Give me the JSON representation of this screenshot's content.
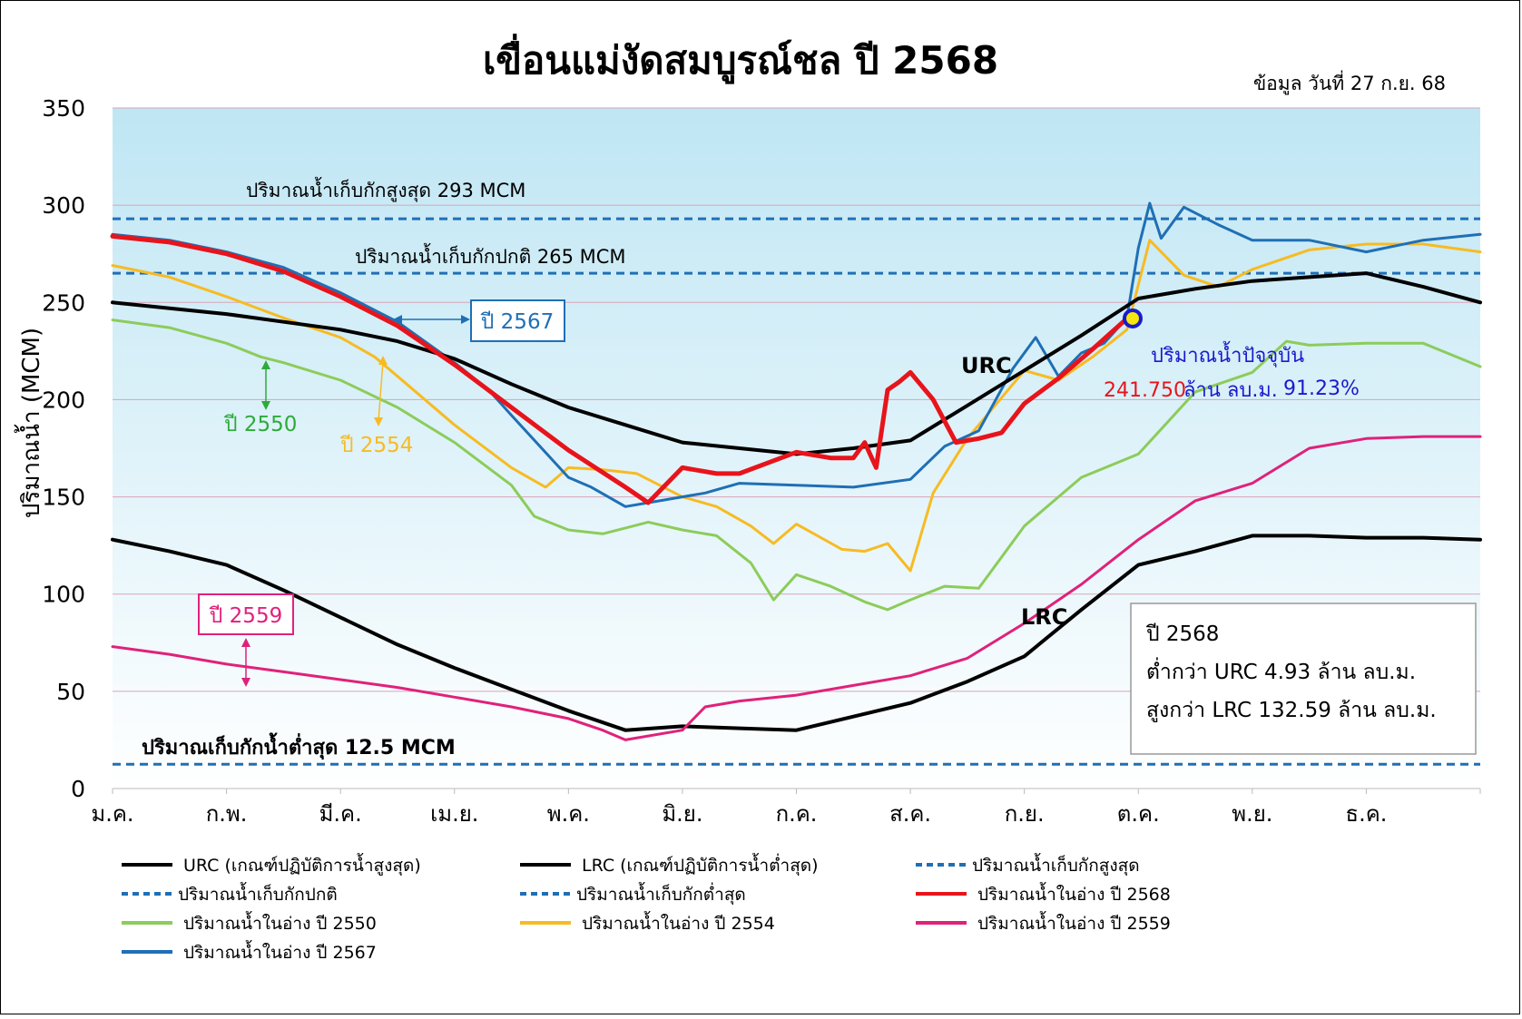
{
  "chart_data": {
    "type": "line",
    "title": "เขื่อนแม่งัดสมบูรณ์ชล ปี 2568",
    "subtitle": "ข้อมูล วันที่ 27 ก.ย. 68",
    "ylabel": "ปริมาณน้ำ (MCM)",
    "ylim": [
      0,
      350
    ],
    "yticks": [
      "0",
      "50",
      "100",
      "150",
      "200",
      "250",
      "300",
      "350"
    ],
    "xlim": [
      1,
      13
    ],
    "x_tick_labels": [
      "ม.ค.",
      "ก.พ.",
      "มี.ค.",
      "เม.ย.",
      "พ.ค.",
      "มิ.ย.",
      "ก.ค.",
      "ส.ค.",
      "ก.ย.",
      "ต.ค.",
      "พ.ย.",
      "ธ.ค."
    ],
    "colors": {
      "background_top": "#bfe6f4",
      "background_bottom": "#ffffff",
      "grid": "#d9a5b9",
      "urc": "#000000",
      "lrc": "#000000",
      "ref": "#1f6fb5",
      "y2568": "#e8141b",
      "y2550": "#8ccc5a",
      "y2554": "#f7bb22",
      "y2559": "#e0217b",
      "y2567": "#1f6fb5",
      "marker_fill": "#f5e60f",
      "marker_stroke": "#1a1acd"
    },
    "reference_lines": [
      {
        "key": "max",
        "value": 293,
        "label": "ปริมาณน้ำเก็บกักสูงสุด 293 MCM"
      },
      {
        "key": "normal",
        "value": 265,
        "label": "ปริมาณน้ำเก็บกักปกติ 265 MCM"
      },
      {
        "key": "min",
        "value": 12.5,
        "label": "ปริมาณเก็บกักน้ำต่ำสุด 12.5 MCM"
      }
    ],
    "series": [
      {
        "key": "urc",
        "x": [
          1.0,
          1.5,
          2.0,
          2.5,
          3.0,
          3.5,
          4.0,
          4.5,
          5.0,
          5.5,
          6.0,
          6.5,
          7.0,
          7.5,
          8.0,
          8.5,
          9.0,
          9.5,
          10.0,
          10.5,
          11.0,
          11.5,
          12.0,
          12.5,
          13.0
        ],
        "values": [
          250,
          247,
          244,
          240,
          236,
          230,
          221,
          208,
          196,
          187,
          178,
          175,
          172,
          175,
          179,
          197,
          215,
          233,
          252,
          257,
          261,
          263,
          265,
          258,
          250
        ]
      },
      {
        "key": "lrc",
        "x": [
          1.0,
          1.5,
          2.0,
          2.5,
          3.0,
          3.5,
          4.0,
          4.5,
          5.0,
          5.5,
          6.0,
          6.5,
          7.0,
          7.5,
          8.0,
          8.5,
          9.0,
          9.5,
          10.0,
          10.5,
          11.0,
          11.5,
          12.0,
          12.5,
          13.0
        ],
        "values": [
          128,
          122,
          115,
          102,
          88,
          74,
          62,
          51,
          40,
          30,
          32,
          31,
          30,
          37,
          44,
          55,
          68,
          92,
          115,
          122,
          130,
          130,
          129,
          129,
          128
        ]
      },
      {
        "key": "y2568",
        "x": [
          1.0,
          1.5,
          2.0,
          2.5,
          3.0,
          3.5,
          4.0,
          4.5,
          5.0,
          5.5,
          5.7,
          6.0,
          6.3,
          6.5,
          7.0,
          7.3,
          7.5,
          7.6,
          7.7,
          7.8,
          7.9,
          8.0,
          8.2,
          8.4,
          8.6,
          8.8,
          9.0,
          9.3,
          9.6,
          9.9
        ],
        "values": [
          284,
          281,
          275,
          266,
          253,
          238,
          218,
          196,
          174,
          155,
          147,
          165,
          162,
          162,
          173,
          170,
          170,
          178,
          165,
          205,
          209,
          214,
          200,
          178,
          180,
          183,
          198,
          211,
          226,
          241.75
        ]
      },
      {
        "key": "y2550",
        "x": [
          1.0,
          1.5,
          2.0,
          2.3,
          2.5,
          3.0,
          3.5,
          4.0,
          4.5,
          4.7,
          5.0,
          5.3,
          5.5,
          5.7,
          6.0,
          6.3,
          6.6,
          6.8,
          7.0,
          7.3,
          7.6,
          7.8,
          8.0,
          8.3,
          8.6,
          9.0,
          9.5,
          10.0,
          10.5,
          11.0,
          11.3,
          11.5,
          12.0,
          12.5,
          13.0
        ],
        "values": [
          241,
          237,
          229,
          222,
          219,
          210,
          196,
          178,
          156,
          140,
          133,
          131,
          134,
          137,
          133,
          130,
          116,
          97,
          110,
          104,
          96,
          92,
          97,
          104,
          103,
          135,
          160,
          172,
          204,
          214,
          230,
          228,
          229,
          229,
          217
        ]
      },
      {
        "key": "y2554",
        "x": [
          1.0,
          1.5,
          2.0,
          2.5,
          3.0,
          3.3,
          3.5,
          4.0,
          4.5,
          4.8,
          5.0,
          5.3,
          5.6,
          6.0,
          6.3,
          6.6,
          6.8,
          7.0,
          7.4,
          7.6,
          7.8,
          8.0,
          8.2,
          8.5,
          9.0,
          9.3,
          9.6,
          9.9,
          10.1,
          10.4,
          10.7,
          11.0,
          11.5,
          12.0,
          12.5,
          13.0
        ],
        "values": [
          269,
          263,
          253,
          242,
          232,
          222,
          212,
          187,
          165,
          155,
          165,
          164,
          162,
          150,
          145,
          135,
          126,
          136,
          123,
          122,
          126,
          112,
          152,
          180,
          215,
          210,
          222,
          236,
          282,
          264,
          258,
          267,
          277,
          280,
          280,
          276
        ]
      },
      {
        "key": "y2559",
        "x": [
          1.0,
          1.5,
          2.0,
          2.5,
          3.0,
          3.5,
          4.0,
          4.5,
          5.0,
          5.3,
          5.5,
          6.0,
          6.2,
          6.5,
          7.0,
          7.5,
          8.0,
          8.5,
          9.0,
          9.5,
          10.0,
          10.5,
          11.0,
          11.5,
          12.0,
          12.5,
          13.0
        ],
        "values": [
          73,
          69,
          64,
          60,
          56,
          52,
          47,
          42,
          36,
          30,
          25,
          30,
          42,
          45,
          48,
          53,
          58,
          67,
          85,
          105,
          128,
          148,
          157,
          175,
          180,
          181,
          181
        ]
      },
      {
        "key": "y2567",
        "x": [
          1.0,
          1.5,
          2.0,
          2.5,
          3.0,
          3.5,
          4.0,
          4.3,
          4.5,
          5.0,
          5.2,
          5.5,
          5.8,
          6.2,
          6.5,
          7.0,
          7.5,
          8.0,
          8.3,
          8.6,
          8.9,
          9.1,
          9.3,
          9.5,
          9.7,
          9.9,
          10.0,
          10.1,
          10.2,
          10.4,
          10.7,
          11.0,
          11.5,
          12.0,
          12.5,
          13.0
        ],
        "values": [
          285,
          282,
          276,
          268,
          255,
          240,
          219,
          205,
          192,
          160,
          155,
          145,
          148,
          152,
          157,
          156,
          155,
          159,
          176,
          184,
          216,
          232,
          212,
          224,
          229,
          242,
          278,
          301,
          283,
          299,
          290,
          282,
          282,
          276,
          282,
          285
        ]
      }
    ],
    "series_labels": [
      {
        "text": "URC"
      },
      {
        "text": "LRC"
      },
      {
        "text": "ปี 2567"
      },
      {
        "text": "ปี 2550"
      },
      {
        "text": "ปี 2554"
      },
      {
        "text": "ปี 2559"
      }
    ],
    "current": {
      "x": 9.95,
      "value": 241.75,
      "caption": "ปริมาณน้ำปัจจุบัน",
      "value_text": "241.750",
      "unit_text": "ล้าน ลบ.ม.",
      "percent_text": "91.23%"
    },
    "info_box": {
      "lines": [
        "ปี 2568",
        "ต่ำกว่า URC 4.93 ล้าน ลบ.ม.",
        "สูงกว่า LRC 132.59 ล้าน ลบ.ม."
      ]
    },
    "legend": {
      "placement": "bottom",
      "entries": [
        {
          "key": "urc",
          "label": "URC (เกณฑ์ปฏิบัติการน้ำสูงสุด)",
          "dash": false
        },
        {
          "key": "lrc",
          "label": "LRC (เกณฑ์ปฏิบัติการน้ำต่ำสุด)",
          "dash": false
        },
        {
          "key": "ref",
          "label": "ปริมาณน้ำเก็บกักสูงสุด",
          "dash": true
        },
        {
          "key": "ref",
          "label": "ปริมาณน้ำเก็บกักปกติ",
          "dash": true
        },
        {
          "key": "ref",
          "label": "ปริมาณน้ำเก็บกักต่ำสุด",
          "dash": true
        },
        {
          "key": "y2568",
          "label": "ปริมาณน้ำในอ่าง ปี 2568",
          "dash": false
        },
        {
          "key": "y2550",
          "label": "ปริมาณน้ำในอ่าง ปี 2550",
          "dash": false
        },
        {
          "key": "y2554",
          "label": "ปริมาณน้ำในอ่าง ปี 2554",
          "dash": false
        },
        {
          "key": "y2559",
          "label": "ปริมาณน้ำในอ่าง ปี 2559",
          "dash": false
        },
        {
          "key": "y2567",
          "label": "ปริมาณน้ำในอ่าง ปี 2567",
          "dash": false
        }
      ]
    }
  }
}
